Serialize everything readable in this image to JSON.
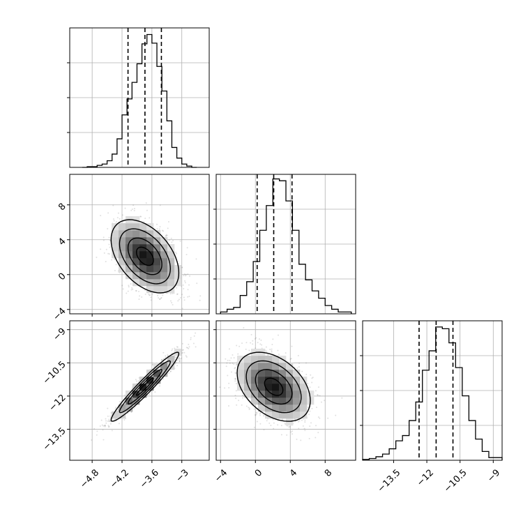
{
  "figure": {
    "type": "corner plot",
    "colors": {
      "line": "#000000",
      "grid": "#b0b0b0",
      "scatter": "#555555",
      "background": "#ffffff"
    }
  },
  "chart_data": [
    {
      "type": "histogram",
      "panel": "row0-col0",
      "param": 0,
      "xlim": [
        -5.25,
        -2.45
      ],
      "bin_edges": [
        -5.0,
        -4.9,
        -4.8,
        -4.7,
        -4.6,
        -4.5,
        -4.4,
        -4.3,
        -4.2,
        -4.1,
        -4.0,
        -3.9,
        -3.8,
        -3.7,
        -3.6,
        -3.5,
        -3.4,
        -3.3,
        -3.2,
        -3.1,
        -3.0,
        -2.9,
        -2.8,
        -2.7
      ],
      "counts": [
        0,
        1,
        1,
        3,
        5,
        10,
        20,
        43,
        79,
        103,
        128,
        156,
        186,
        200,
        187,
        152,
        115,
        70,
        30,
        14,
        5,
        2,
        0
      ],
      "ylim": [
        0,
        210
      ],
      "quantiles": [
        -4.08,
        -3.74,
        -3.41
      ],
      "grid": true
    },
    {
      "type": "histogram",
      "panel": "row1-col1",
      "param": 1,
      "xlim": [
        -4.5,
        11.5
      ],
      "bin_edges": [
        -4,
        -3.25,
        -2.5,
        -1.75,
        -1,
        -0.25,
        0.5,
        1.25,
        2,
        2.75,
        3.5,
        4.25,
        5,
        5.75,
        6.5,
        7.25,
        8,
        8.75,
        9.5,
        10.25,
        11
      ],
      "counts": [
        2,
        5,
        7,
        20,
        35,
        57,
        91,
        118,
        147,
        145,
        123,
        91,
        54,
        37,
        25,
        17,
        9,
        5,
        2,
        2
      ],
      "ylim": [
        0,
        152
      ],
      "quantiles": [
        0.2,
        2.1,
        4.2
      ],
      "grid": true
    },
    {
      "type": "histogram",
      "panel": "row2-col2",
      "param": 2,
      "xlim": [
        -14.9,
        -8.6
      ],
      "bin_edges": [
        -14.9,
        -14.6,
        -14.3,
        -14.0,
        -13.7,
        -13.4,
        -13.1,
        -12.8,
        -12.5,
        -12.2,
        -11.9,
        -11.6,
        -11.3,
        -11.0,
        -10.7,
        -10.4,
        -10.1,
        -9.8,
        -9.5,
        -9.2,
        -8.9,
        -8.6
      ],
      "counts": [
        1,
        2,
        4,
        7,
        13,
        22,
        28,
        45,
        66,
        102,
        124,
        151,
        149,
        133,
        105,
        73,
        45,
        24,
        10,
        3,
        3
      ],
      "ylim": [
        0,
        158
      ],
      "quantiles": [
        -12.35,
        -11.58,
        -10.82
      ],
      "xticks": [
        -13.5,
        -12.0,
        -10.5,
        -9.0
      ],
      "grid": true
    },
    {
      "type": "2d-density",
      "panel": "row1-col0",
      "x_param": 0,
      "y_param": 1,
      "xlim": [
        -5.25,
        -2.45
      ],
      "ylim": [
        -4.5,
        11.5
      ],
      "yticks": [
        -4,
        0,
        4,
        8
      ],
      "mean": [
        -3.74,
        2.1
      ],
      "std": [
        0.34,
        2.1
      ],
      "correlation": -0.45,
      "contour_levels_sigma": [
        0.5,
        1.0,
        1.5,
        2.0
      ],
      "grid": true
    },
    {
      "type": "2d-density",
      "panel": "row2-col0",
      "x_param": 0,
      "y_param": 2,
      "xlim": [
        -5.25,
        -2.45
      ],
      "ylim": [
        -14.9,
        -8.6
      ],
      "yticks": [
        -13.5,
        -12.0,
        -10.5,
        -9.0
      ],
      "xticks": [
        -4.8,
        -4.2,
        -3.6,
        -3.0
      ],
      "mean": [
        -3.74,
        -11.58
      ],
      "std": [
        0.34,
        0.78
      ],
      "correlation": 0.96,
      "contour_levels_sigma": [
        0.5,
        1.0,
        1.5,
        2.0
      ],
      "grid": true
    },
    {
      "type": "2d-density",
      "panel": "row2-col1",
      "x_param": 1,
      "y_param": 2,
      "xlim": [
        -4.5,
        11.5
      ],
      "ylim": [
        -14.9,
        -8.6
      ],
      "xticks": [
        -4,
        0,
        4,
        8
      ],
      "mean": [
        2.1,
        -11.58
      ],
      "std": [
        2.1,
        0.78
      ],
      "correlation": -0.4,
      "contour_levels_sigma": [
        0.5,
        1.0,
        1.5,
        2.0
      ],
      "grid": true
    }
  ]
}
